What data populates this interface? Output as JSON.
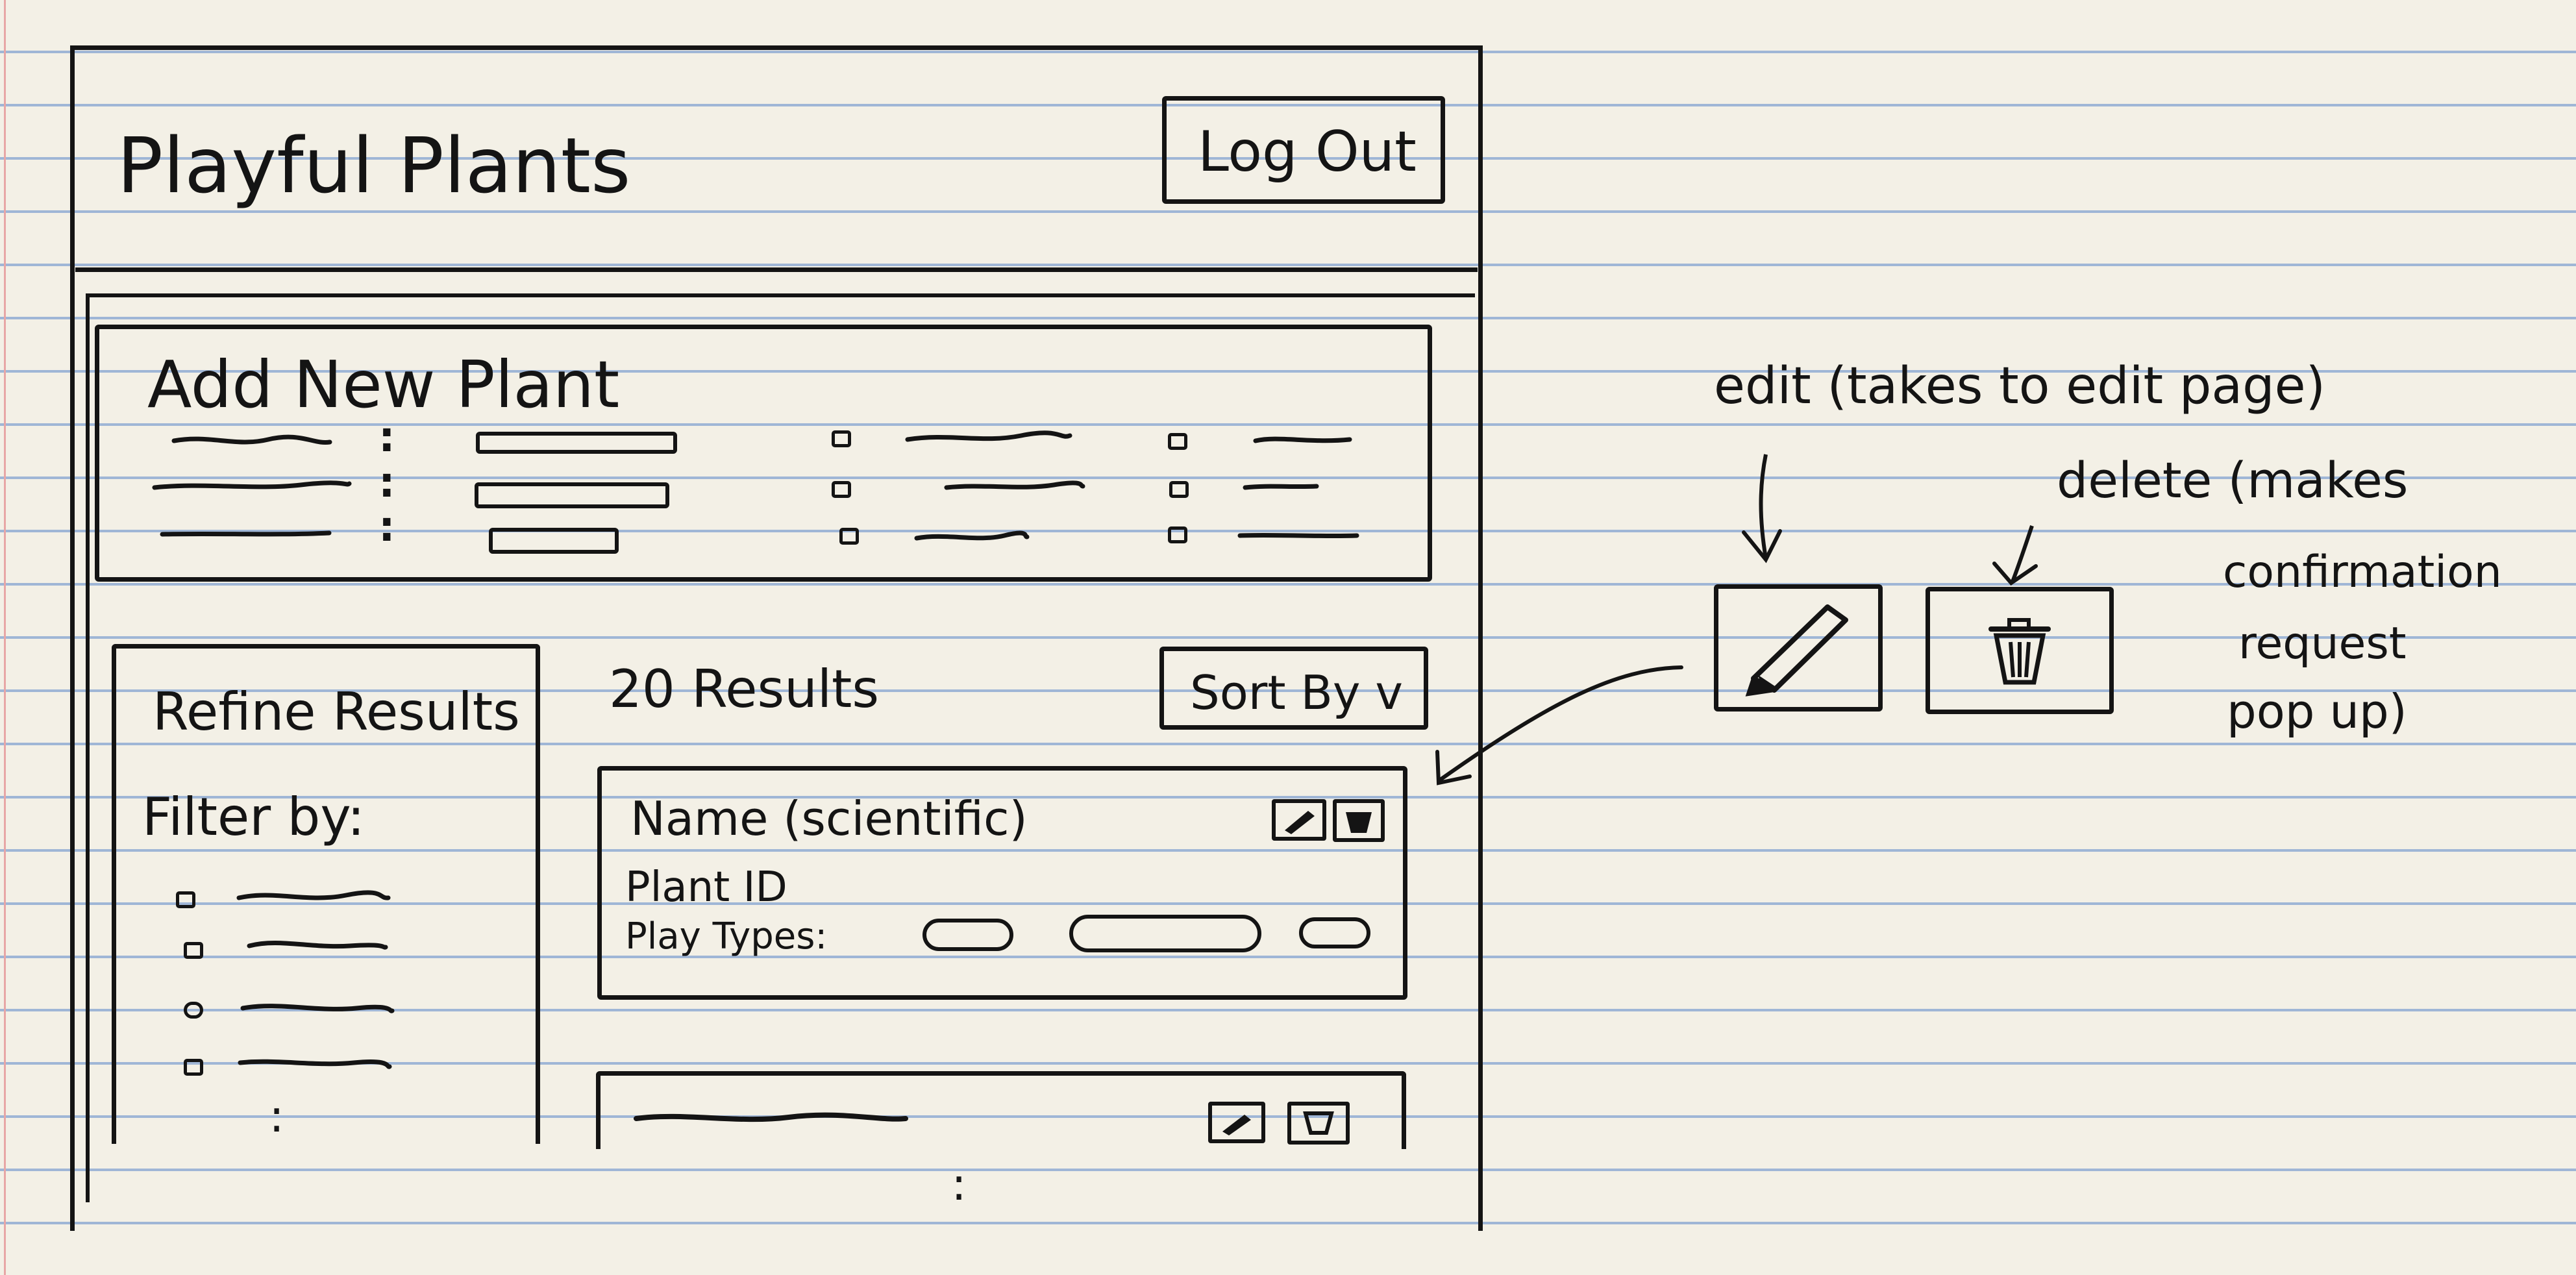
{
  "app": {
    "title": "Playful Plants",
    "logout_label": "Log Out"
  },
  "add_plant": {
    "title": "Add New Plant"
  },
  "results": {
    "count_text": "20 Results",
    "sort_label": "Sort By v"
  },
  "sidebar": {
    "title": "Refine Results",
    "filter_label": "Filter by:"
  },
  "card": {
    "name": "Name (scientific)",
    "plant_id": "Plant ID",
    "play_types": "Play Types:"
  },
  "annotations": {
    "edit_note": "edit (takes to edit page)",
    "delete_note_1": "delete (makes",
    "delete_note_2": "confirmation",
    "delete_note_3": "request",
    "delete_note_4": "pop up)"
  },
  "icons": {
    "edit": "pencil-icon",
    "delete": "trash-icon"
  },
  "colors": {
    "paper": "#f3f0e6",
    "rule_lines": "#9fb6d6",
    "ink": "#141414",
    "margin": "#e7a6a6"
  }
}
